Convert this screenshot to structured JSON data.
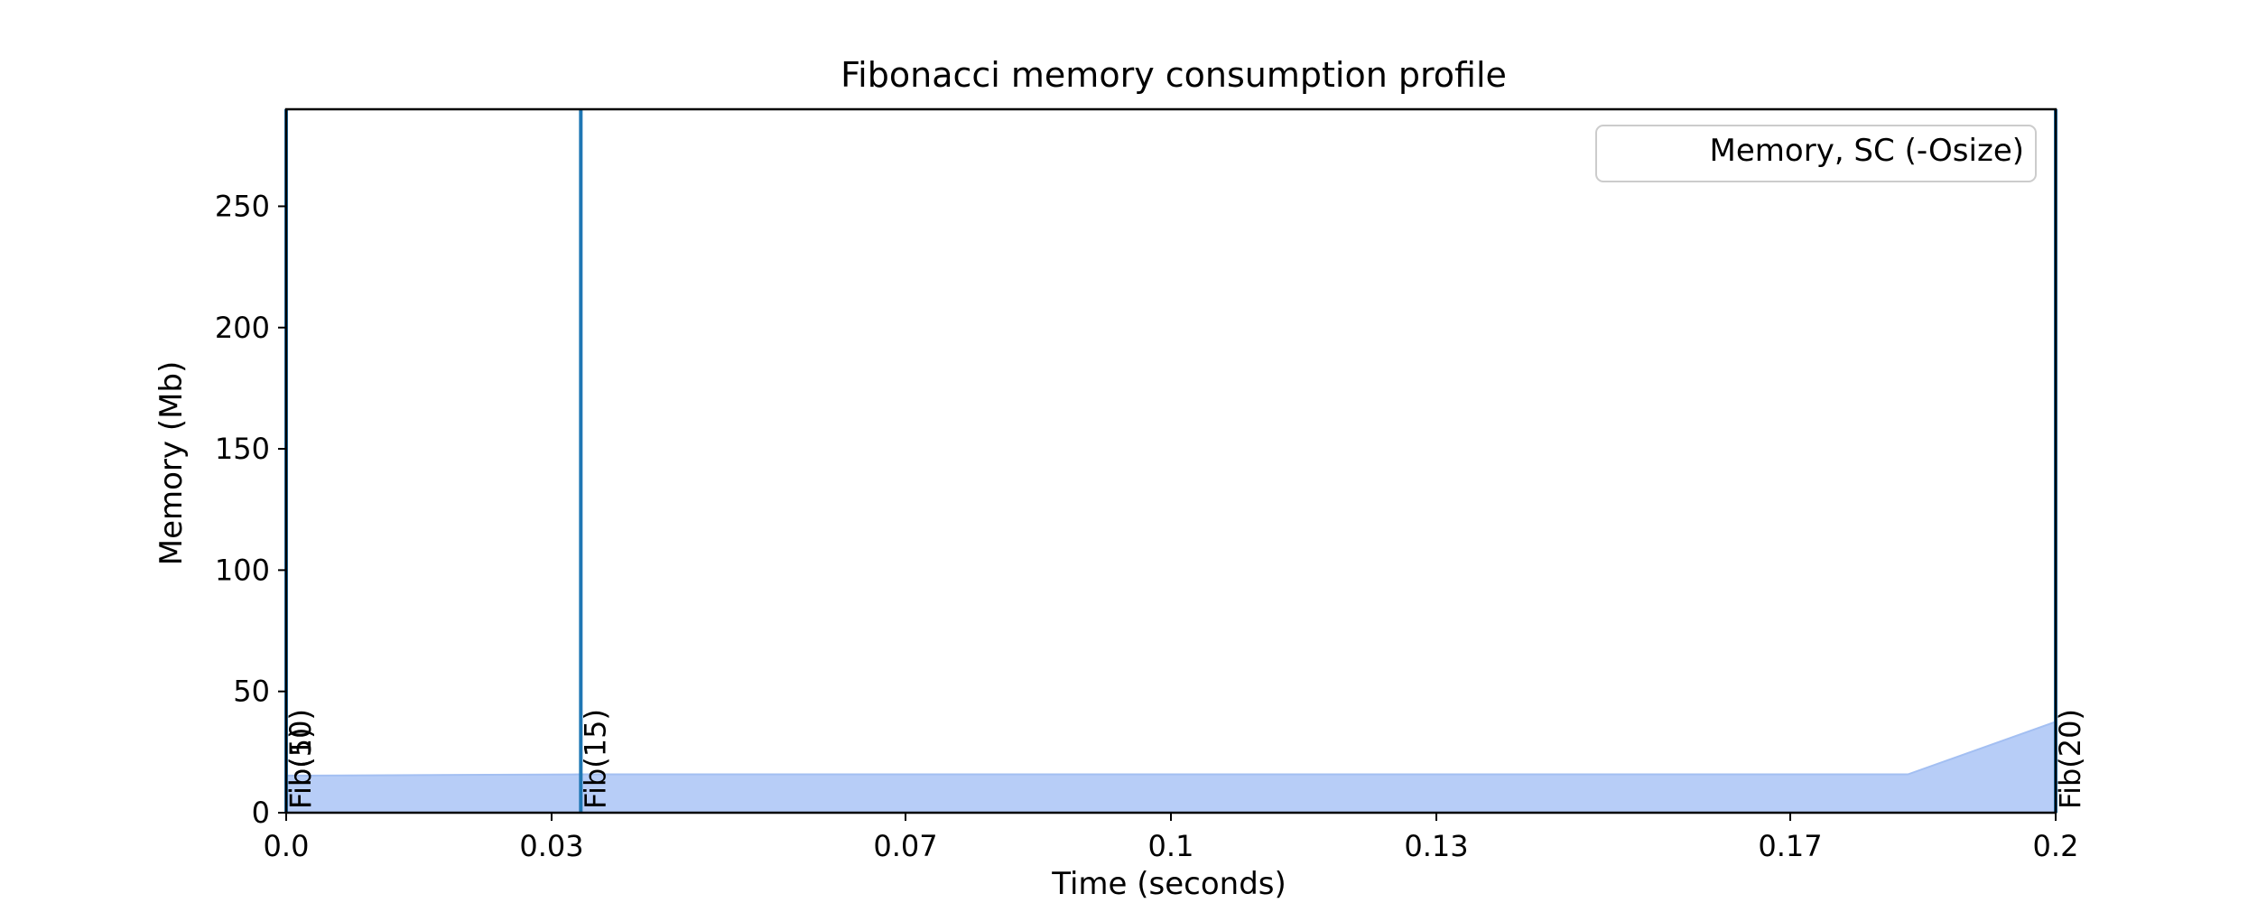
{
  "chart_data": {
    "type": "area",
    "title": "Fibonacci memory consumption profile",
    "xlabel": "Time (seconds)",
    "ylabel": "Memory (Mb)",
    "xlim": [
      0.0,
      0.2
    ],
    "ylim": [
      0,
      290
    ],
    "x_ticks": [
      0.0,
      0.03,
      0.07,
      0.1,
      0.13,
      0.17,
      0.2
    ],
    "x_tick_labels": [
      "0.0",
      "0.03",
      "0.07",
      "0.1",
      "0.13",
      "0.17",
      "0.2"
    ],
    "y_ticks": [
      0,
      50,
      100,
      150,
      200,
      250
    ],
    "y_tick_labels": [
      "0",
      "50",
      "100",
      "150",
      "200",
      "250"
    ],
    "grid": false,
    "legend": {
      "position": "top-right",
      "entries": [
        "Memory, SC (-Osize)"
      ]
    },
    "series": [
      {
        "name": "Memory, SC (-Osize)",
        "x": [
          0.0,
          0.0033,
          0.0333,
          0.0667,
          0.1,
          0.1333,
          0.1667,
          0.1833,
          0.2
        ],
        "y": [
          15.3,
          15.3,
          15.8,
          15.8,
          15.8,
          15.8,
          15.8,
          15.8,
          37.5
        ]
      }
    ],
    "markers": [
      {
        "x": 0.0,
        "label": "Fib(10)"
      },
      {
        "x": 0.0,
        "label": "Fib(5)"
      },
      {
        "x": 0.0333,
        "label": "Fib(15)"
      },
      {
        "x": 0.2,
        "label": "Fib(20)"
      }
    ],
    "colors": {
      "fill": "#b7cdf7",
      "fill_edge": "#a3bff2",
      "marker_line": "#1f77b4",
      "axis": "#000000",
      "legend_border": "#cccccc"
    }
  }
}
